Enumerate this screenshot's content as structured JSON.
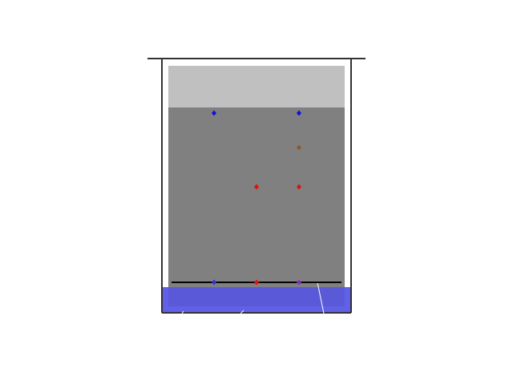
{
  "colors": {
    "background": "#ffffff",
    "frame": "#333333",
    "top_band": "#c0c0c0",
    "play_area": "#808080",
    "floor_line": "#000000",
    "water": "#6060e8",
    "water_highlight": "#ffffff"
  },
  "markers": [
    {
      "name": "marker-blue-upper-left",
      "color": "#1010e0"
    },
    {
      "name": "marker-blue-upper-right",
      "color": "#1010e0"
    },
    {
      "name": "marker-brown",
      "color": "#8b5a2b"
    },
    {
      "name": "marker-red-mid-left",
      "color": "#e01010"
    },
    {
      "name": "marker-red-mid-right",
      "color": "#e01010"
    },
    {
      "name": "marker-blue-floor",
      "color": "#3030e0"
    },
    {
      "name": "marker-red-floor",
      "color": "#e01010"
    },
    {
      "name": "marker-purple-floor",
      "color": "#8030c0"
    }
  ]
}
